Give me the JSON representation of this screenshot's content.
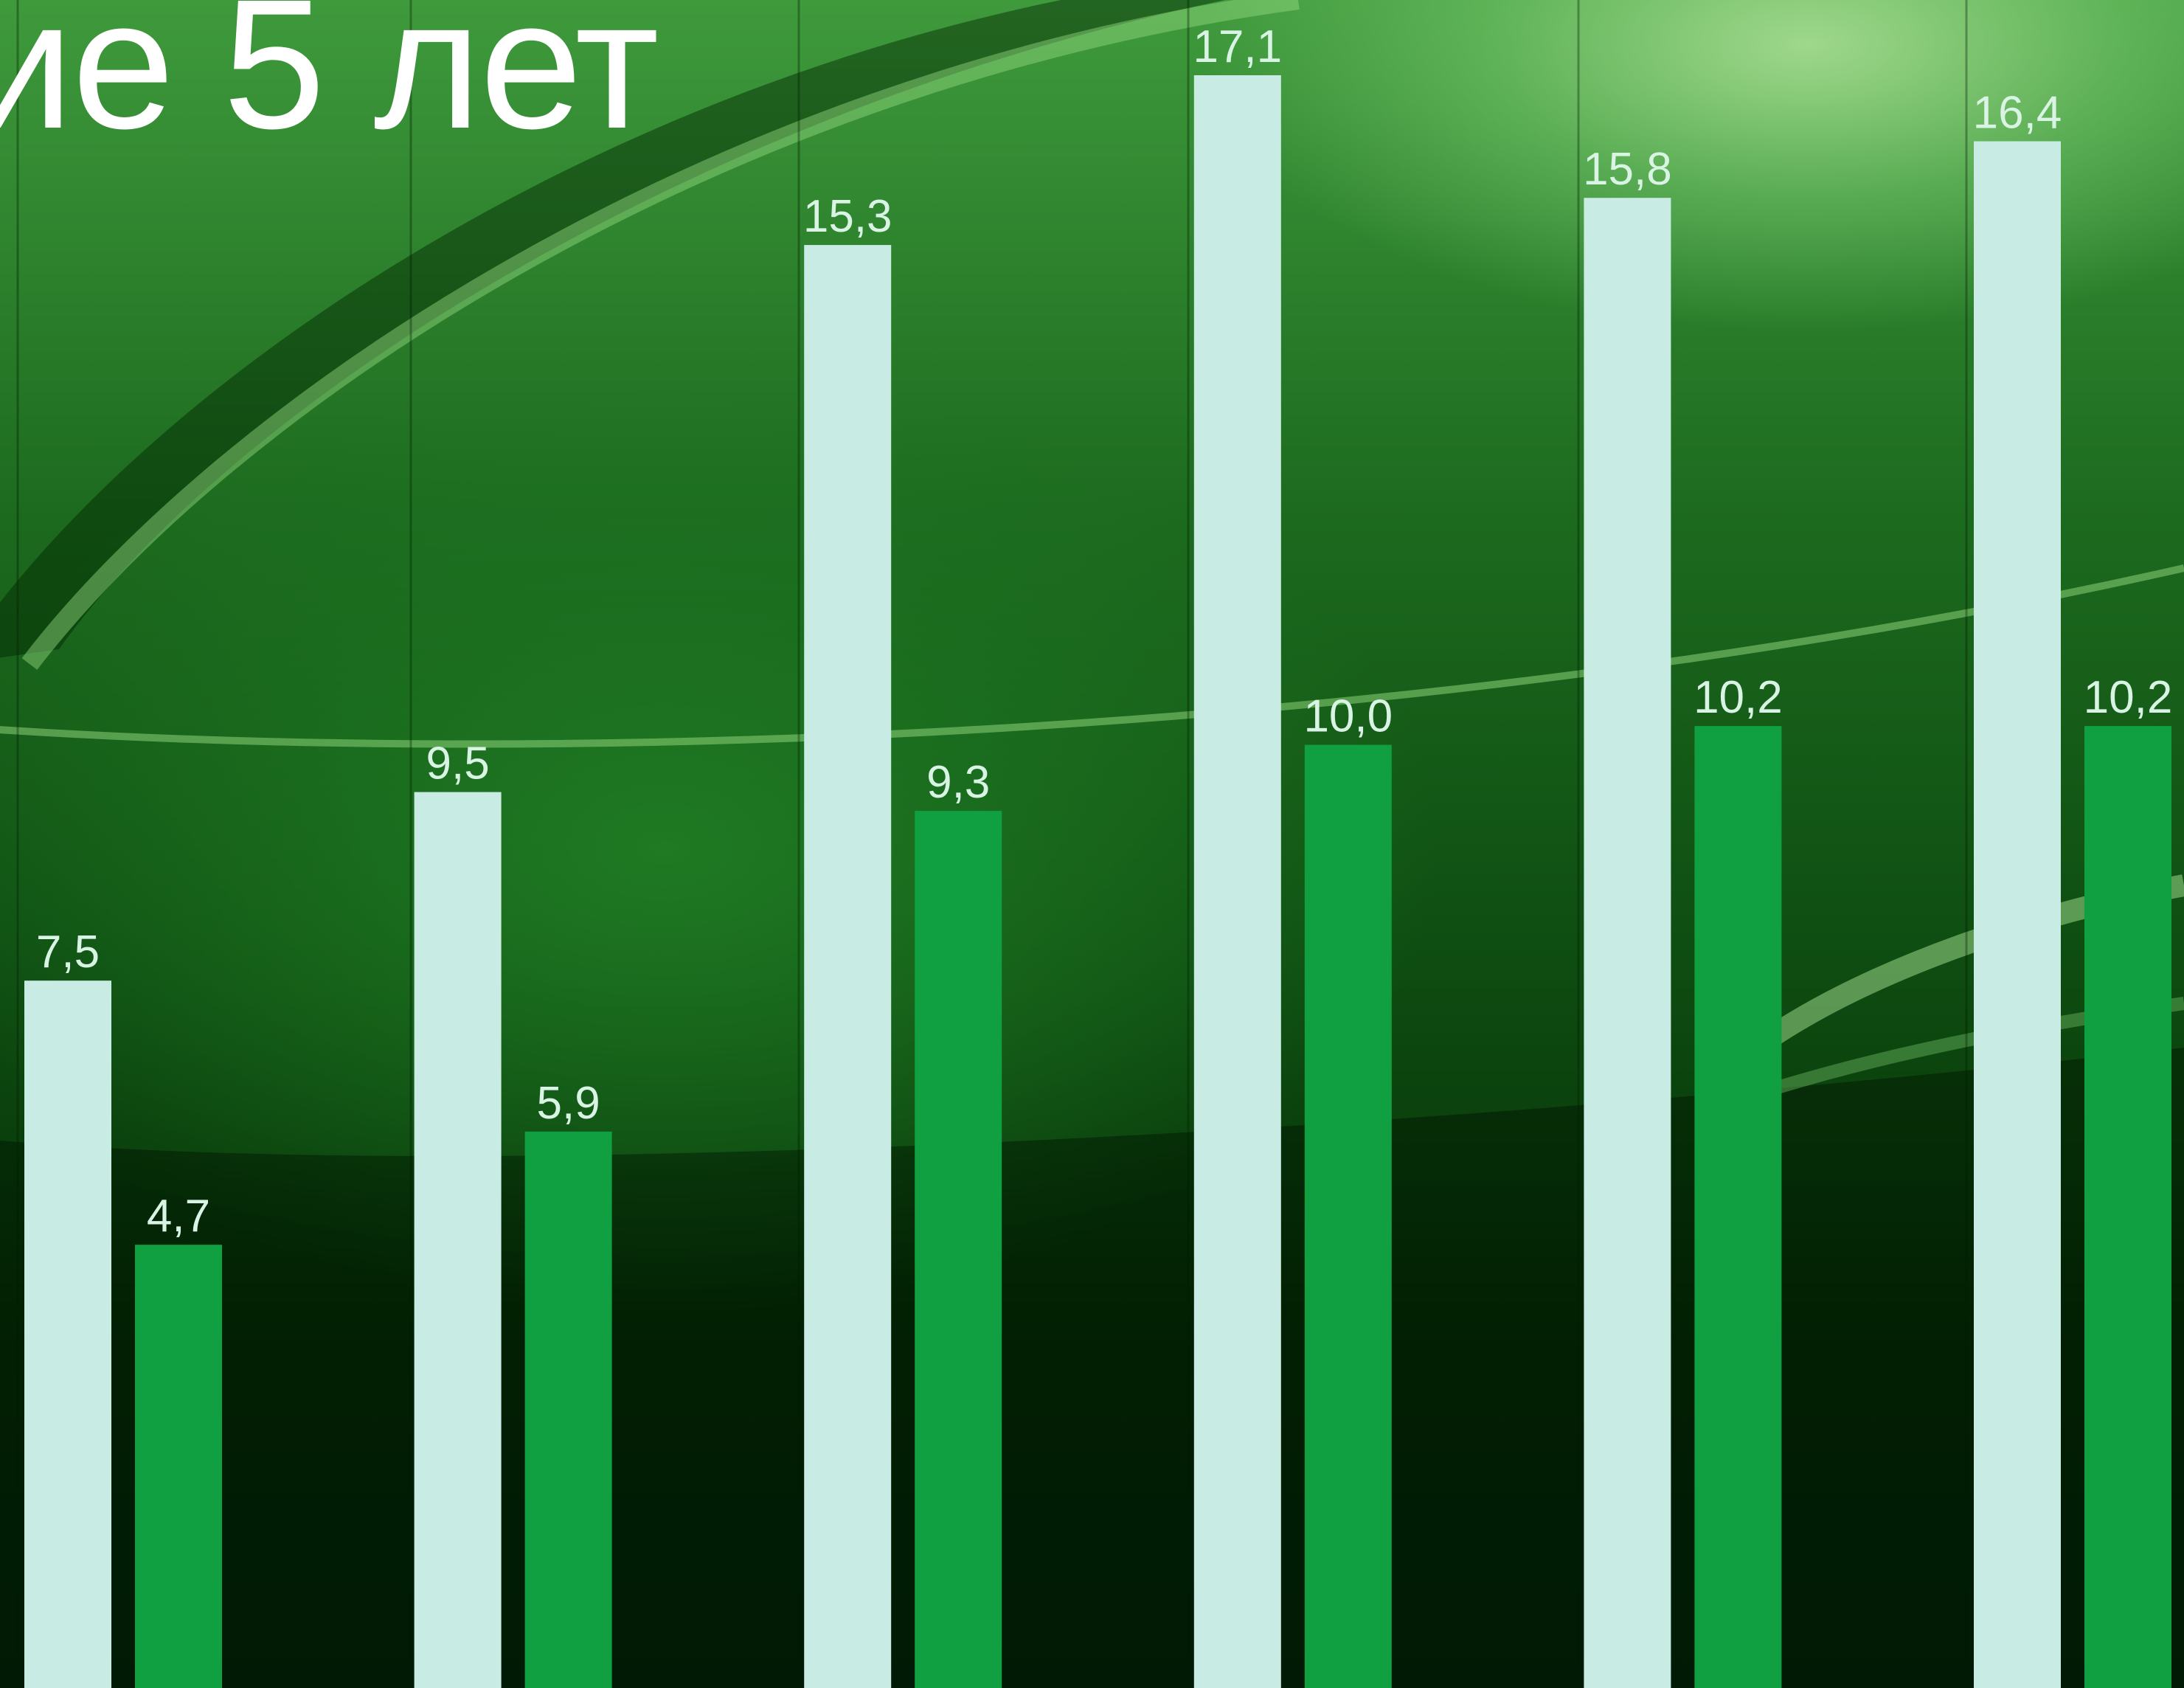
{
  "title": "ие 5 лет",
  "colors": {
    "series_light": "#c8ece3",
    "series_dark": "#10a041",
    "label_text": "#d9f3e4",
    "title_text": "#ffffff"
  },
  "chart_data": {
    "type": "bar",
    "title": "ие 5 лет",
    "categories": [
      "",
      "",
      "",
      "",
      "",
      ""
    ],
    "series": [
      {
        "values": [
          7.5,
          9.5,
          15.3,
          17.1,
          15.8,
          16.4
        ],
        "labels": [
          "7,5",
          "9,5",
          "15,3",
          "17,1",
          "15,8",
          "16,4"
        ],
        "color": "#c8ece3"
      },
      {
        "values": [
          4.7,
          5.9,
          9.3,
          10.0,
          10.2,
          10.2
        ],
        "labels": [
          "4,7",
          "5,9",
          "9,3",
          "10,0",
          "10,2",
          "10,2"
        ],
        "color": "#10a041"
      }
    ],
    "ylim": [
      0,
      18
    ],
    "grid": false,
    "legend": "none"
  }
}
